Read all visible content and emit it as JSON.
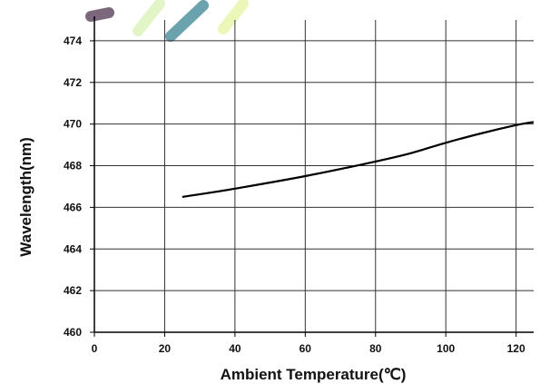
{
  "chart_data": {
    "type": "line",
    "title": "",
    "xlabel": "Ambient Temperature(℃)",
    "ylabel": "Wavelength(nm)",
    "xlim": [
      0,
      125
    ],
    "ylim": [
      460,
      475
    ],
    "x_ticks": [
      0,
      20,
      40,
      60,
      80,
      100,
      120
    ],
    "y_ticks": [
      460,
      462,
      464,
      466,
      468,
      470,
      472,
      474
    ],
    "grid": true,
    "series": [
      {
        "x": [
          25,
          40,
          60,
          80,
          90,
          100,
          110,
          120,
          125
        ],
        "y": [
          466.5,
          466.9,
          467.5,
          468.2,
          468.6,
          469.1,
          469.55,
          469.95,
          470.1
        ]
      }
    ]
  },
  "decorations": {
    "stripe_colors": [
      "#6e5870",
      "#dff5c2",
      "#5a9aa6",
      "#e9f7b0"
    ]
  }
}
